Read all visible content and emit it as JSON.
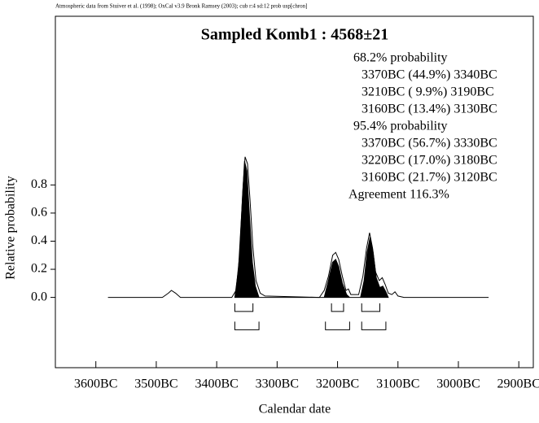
{
  "chart_data": {
    "type": "line",
    "header": "Atmospheric data from Stuiver et al. (1998); OxCal v3.9 Bronk Ramsey (2003); cub r:4 sd:12 prob usp[chron]",
    "title": "Sampled Komb1 : 4568±21",
    "x_label": "Calendar date",
    "y_label": "Relative probability",
    "xlim": [
      -3667,
      -2876
    ],
    "ylim": [
      -0.5,
      2.0
    ],
    "xticks": [
      {
        "value": -3600,
        "label": "3600BC"
      },
      {
        "value": -3500,
        "label": "3500BC"
      },
      {
        "value": -3400,
        "label": "3400BC"
      },
      {
        "value": -3300,
        "label": "3300BC"
      },
      {
        "value": -3200,
        "label": "3200BC"
      },
      {
        "value": -3100,
        "label": "3100BC"
      },
      {
        "value": -3000,
        "label": "3000BC"
      },
      {
        "value": -2900,
        "label": "2900BC"
      }
    ],
    "yticks": [
      {
        "value": 0,
        "label": "0.0"
      },
      0.2,
      0.4,
      0.6,
      0.8
    ],
    "series": [
      {
        "color": "#000000",
        "filled": false,
        "x": [
          -3580,
          -3490,
          -3480,
          -3475,
          -3468,
          -3460,
          -3375,
          -3368,
          -3362,
          -3357,
          -3353,
          -3349,
          -3345,
          -3340,
          -3335,
          -3328,
          -3320,
          -3230,
          -3222,
          -3215,
          -3208,
          -3203,
          -3198,
          -3192,
          -3186,
          -3182,
          -3178,
          -3165,
          -3158,
          -3152,
          -3147,
          -3142,
          -3137,
          -3131,
          -3126,
          -3121,
          -3116,
          -3110,
          -3105,
          -3100,
          -3090,
          -2950
        ],
        "values": [
          0,
          0,
          0.03,
          0.05,
          0.03,
          0,
          0,
          0.05,
          0.3,
          0.75,
          1.0,
          0.95,
          0.7,
          0.35,
          0.12,
          0.03,
          0.01,
          0,
          0.05,
          0.15,
          0.3,
          0.32,
          0.27,
          0.15,
          0.05,
          0.06,
          0.02,
          0.02,
          0.15,
          0.35,
          0.46,
          0.35,
          0.18,
          0.12,
          0.14,
          0.09,
          0.03,
          0.02,
          0.04,
          0.01,
          0,
          0
        ]
      },
      {
        "color": "#000000",
        "filled": true,
        "x": [
          -3370,
          -3364,
          -3358,
          -3354,
          -3350,
          -3346,
          -3341,
          -3336,
          -3330,
          -3222,
          -3215,
          -3208,
          -3203,
          -3198,
          -3192,
          -3185,
          -3180,
          -3162,
          -3156,
          -3151,
          -3146,
          -3141,
          -3136,
          -3130,
          -3125,
          -3120,
          -3116
        ],
        "values": [
          0,
          0.2,
          0.65,
          0.97,
          0.9,
          0.6,
          0.25,
          0.08,
          0,
          0,
          0.12,
          0.25,
          0.27,
          0.22,
          0.1,
          0.02,
          0,
          0,
          0.12,
          0.32,
          0.43,
          0.32,
          0.14,
          0.07,
          0.08,
          0.04,
          0
        ]
      }
    ],
    "ranges": [
      {
        "level": "68.2% probability",
        "bracket_y": -0.1,
        "items": [
          {
            "label": "3370BC (44.9%) 3340BC",
            "from": -3370,
            "to": -3340
          },
          {
            "label": "3210BC ( 9.9%) 3190BC",
            "from": -3210,
            "to": -3190
          },
          {
            "label": "3160BC (13.4%) 3130BC",
            "from": -3160,
            "to": -3130
          }
        ]
      },
      {
        "level": "95.4% probability",
        "bracket_y": -0.23,
        "items": [
          {
            "label": "3370BC (56.7%) 3330BC",
            "from": -3370,
            "to": -3330
          },
          {
            "label": "3220BC (17.0%) 3180BC",
            "from": -3220,
            "to": -3180
          },
          {
            "label": "3160BC (21.7%) 3120BC",
            "from": -3160,
            "to": -3120
          }
        ]
      }
    ],
    "agreement": "Agreement 116.3%"
  }
}
